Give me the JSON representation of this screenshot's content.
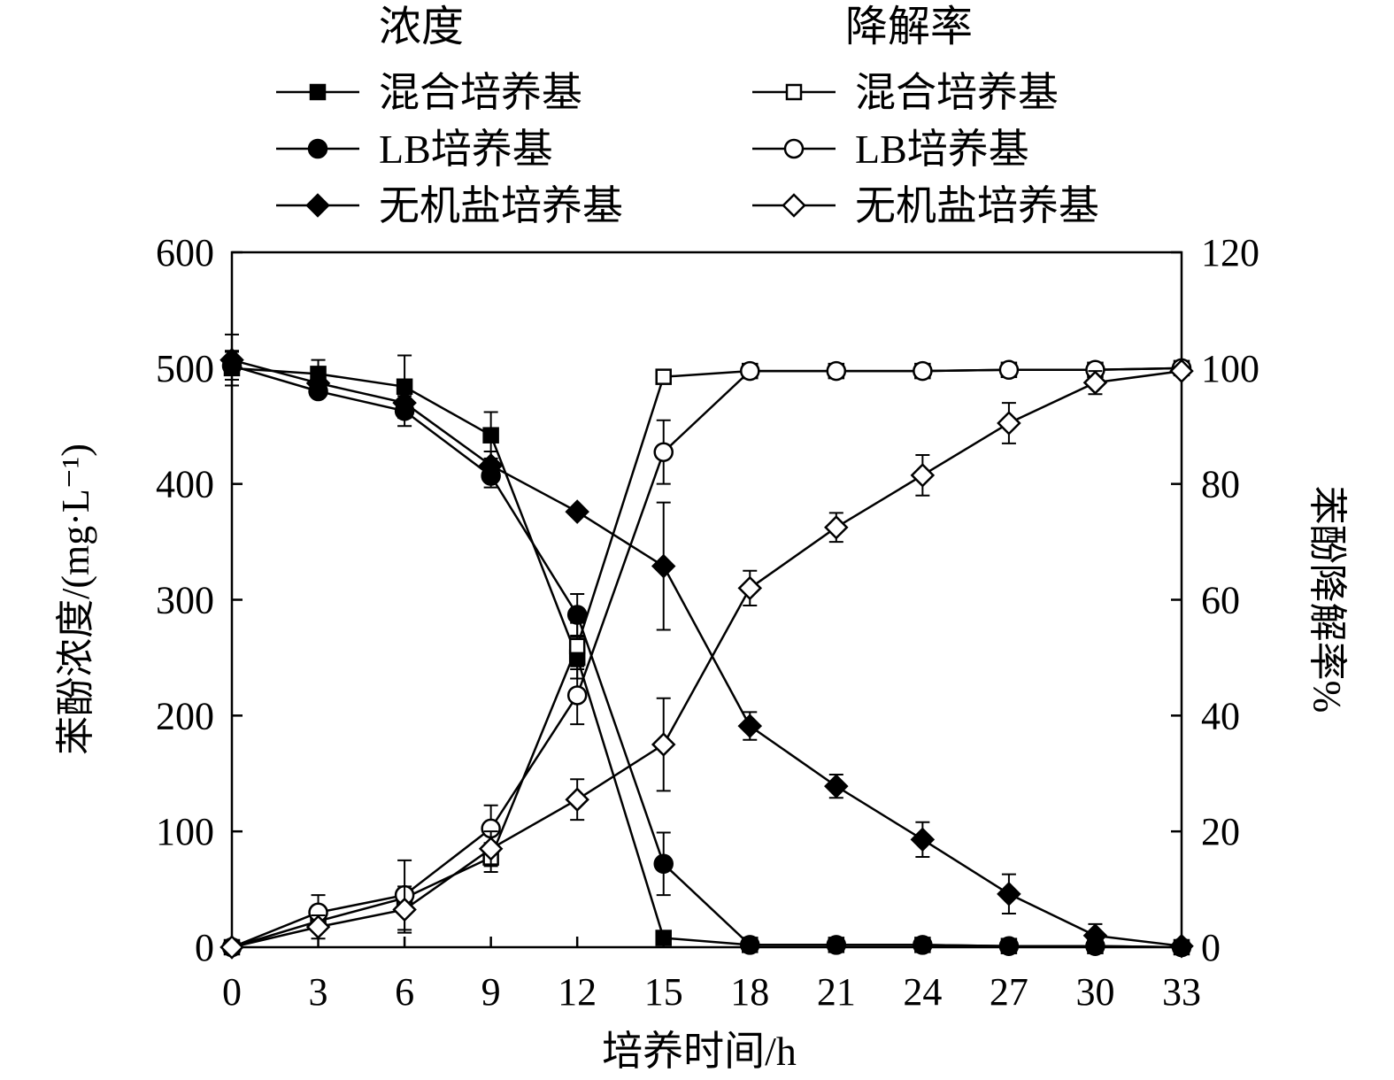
{
  "chart_data": {
    "type": "line",
    "title": "",
    "xlabel": "培养时间/h",
    "ylabel_left": "苯酚浓度/(mg·L⁻¹)",
    "ylabel_right": "苯酚降解率%",
    "xlim": [
      0,
      33
    ],
    "ylim_left": [
      0,
      600
    ],
    "ylim_right": [
      0,
      120
    ],
    "x_ticks": [
      0,
      3,
      6,
      9,
      12,
      15,
      18,
      21,
      24,
      27,
      30,
      33
    ],
    "y_left_ticks": [
      0,
      100,
      200,
      300,
      400,
      500,
      600
    ],
    "y_right_ticks": [
      0,
      20,
      40,
      60,
      80,
      100,
      120
    ],
    "grid": false,
    "legend_placement": "top",
    "legend_group_titles": {
      "concentration": "浓度",
      "degradation": "降解率"
    },
    "x": [
      0,
      3,
      6,
      9,
      12,
      15,
      18,
      21,
      24,
      27,
      30,
      33
    ],
    "series": [
      {
        "name": "混合培养基",
        "group": "concentration",
        "axis": "left",
        "marker": "square",
        "filled": true,
        "values": [
          500,
          495,
          484,
          442,
          250,
          8,
          2,
          2,
          2,
          1,
          1,
          0
        ],
        "errors": [
          15,
          12,
          27,
          20,
          18,
          0,
          0,
          0,
          0,
          0,
          0,
          0
        ]
      },
      {
        "name": "LB培养基",
        "group": "concentration",
        "axis": "left",
        "marker": "circle",
        "filled": true,
        "values": [
          502,
          480,
          463,
          407,
          287,
          72,
          2,
          2,
          2,
          1,
          1,
          0
        ],
        "errors": [
          12,
          0,
          13,
          10,
          18,
          27,
          0,
          0,
          0,
          0,
          0,
          0
        ]
      },
      {
        "name": "无机盐培养基",
        "group": "concentration",
        "axis": "left",
        "marker": "diamond",
        "filled": true,
        "values": [
          507,
          487,
          470,
          416,
          376,
          329,
          191,
          139,
          93,
          46,
          10,
          1
        ],
        "errors": [
          22,
          10,
          10,
          12,
          0,
          55,
          12,
          10,
          15,
          17,
          10,
          0
        ]
      },
      {
        "name": "混合培养基",
        "group": "degradation",
        "axis": "right",
        "marker": "square",
        "filled": false,
        "values": [
          0,
          4.5,
          8.5,
          15.5,
          52,
          98.5,
          99.5,
          99.5,
          99.5,
          99.7,
          99.7,
          100
        ],
        "errors": [
          0,
          0,
          0,
          2.5,
          4,
          0,
          0,
          0,
          0,
          0,
          0,
          0
        ]
      },
      {
        "name": "LB培养基",
        "group": "degradation",
        "axis": "right",
        "marker": "circle",
        "filled": false,
        "values": [
          0,
          6,
          9,
          20.5,
          43.5,
          85.5,
          99.5,
          99.5,
          99.5,
          99.7,
          99.7,
          100
        ],
        "errors": [
          0,
          3,
          6,
          4,
          5,
          5.5,
          0,
          0,
          0,
          0,
          0,
          0
        ]
      },
      {
        "name": "无机盐培养基",
        "group": "degradation",
        "axis": "right",
        "marker": "diamond",
        "filled": false,
        "values": [
          0,
          3.5,
          6.5,
          17,
          25.5,
          35,
          62,
          72.5,
          81.5,
          90.5,
          97.5,
          99.5
        ],
        "errors": [
          0,
          2,
          4,
          3,
          3.5,
          8,
          3,
          2.5,
          3.5,
          3.5,
          2,
          0
        ]
      }
    ]
  }
}
